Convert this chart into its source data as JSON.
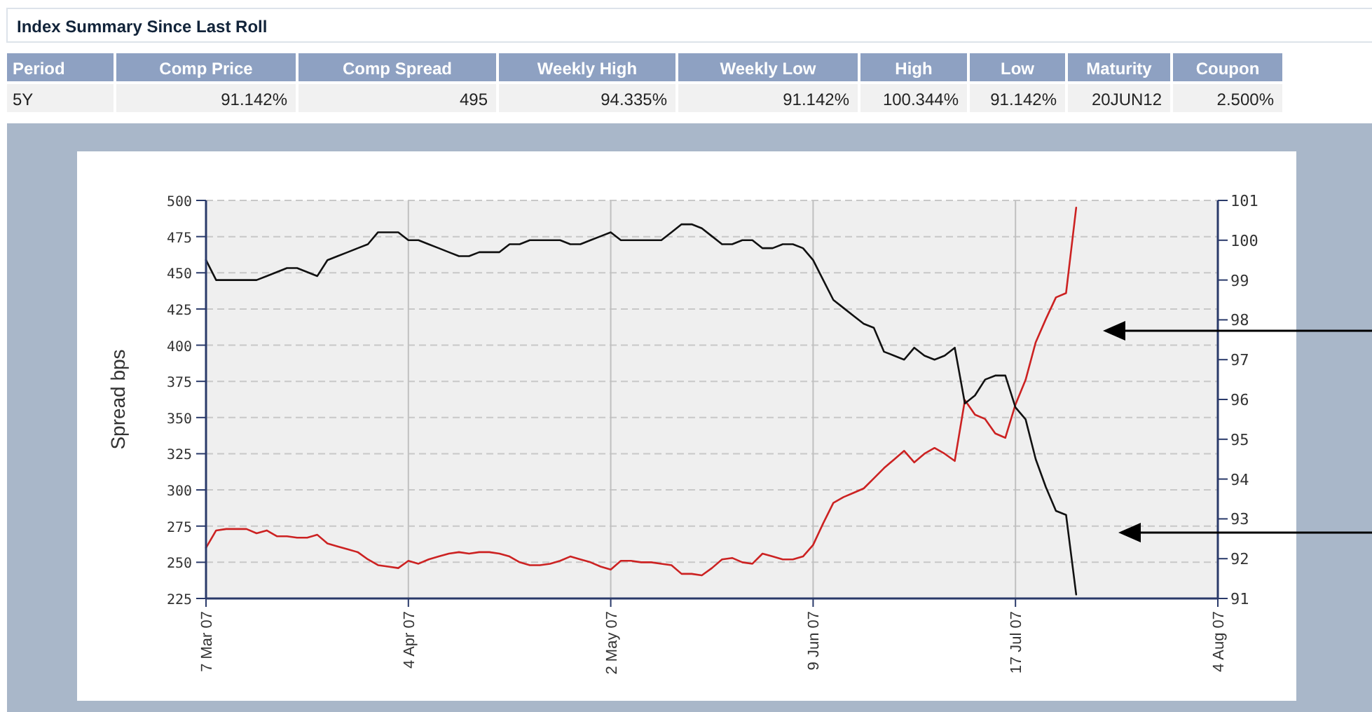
{
  "chart_data": [
    {
      "type": "other",
      "title": "Index Summary Since Last Roll",
      "categories": [
        "Period",
        "Comp Price",
        "Comp Spread",
        "Weekly High",
        "Weekly Low",
        "High",
        "Low",
        "Maturity",
        "Coupon"
      ],
      "annotations": [
        "5Y",
        "91.142%",
        "495",
        "94.335%",
        "91.142%",
        "100.344%",
        "91.142%",
        "20JUN12",
        "2.500%"
      ]
    },
    {
      "type": "line",
      "ylabel": "Spread bps",
      "categories": [
        "7 Mar 07",
        null,
        null,
        null,
        null,
        null,
        null,
        null,
        null,
        null,
        null,
        null,
        null,
        null,
        null,
        null,
        null,
        null,
        null,
        null,
        "4 Apr 07",
        null,
        null,
        null,
        null,
        null,
        null,
        null,
        null,
        null,
        null,
        null,
        null,
        null,
        null,
        null,
        null,
        null,
        null,
        null,
        "2 May 07",
        null,
        null,
        null,
        null,
        null,
        null,
        null,
        null,
        null,
        null,
        null,
        null,
        null,
        null,
        null,
        null,
        null,
        null,
        null,
        "9 Jun 07",
        null,
        null,
        null,
        null,
        null,
        null,
        null,
        null,
        null,
        null,
        null,
        null,
        null,
        null,
        null,
        null,
        null,
        null,
        null,
        "17 Jul 07",
        null,
        null,
        null,
        null,
        null,
        null,
        null,
        null,
        null,
        null,
        null,
        null,
        null,
        null,
        null,
        null,
        null,
        null,
        null,
        "4 Aug 07"
      ],
      "ylim": [
        225,
        500
      ],
      "yticks": [
        225,
        250,
        275,
        300,
        325,
        350,
        375,
        400,
        425,
        450,
        475,
        500
      ],
      "y2lim": [
        91,
        101
      ],
      "y2ticks": [
        91,
        92,
        93,
        94,
        95,
        96,
        97,
        98,
        99,
        100,
        101
      ],
      "grid": true,
      "series": [
        {
          "color": "#cc2222",
          "values": [
            260,
            272,
            273,
            273,
            273,
            270,
            272,
            268,
            268,
            267,
            267,
            269,
            263,
            261,
            259,
            257,
            252,
            248,
            247,
            246,
            251,
            249,
            252,
            254,
            256,
            257,
            256,
            257,
            257,
            256,
            254,
            250,
            248,
            248,
            249,
            251,
            254,
            252,
            250,
            247,
            245,
            251,
            251,
            250,
            250,
            249,
            248,
            242,
            242,
            241,
            246,
            252,
            253,
            250,
            249,
            256,
            254,
            252,
            252,
            254,
            262,
            277,
            291,
            295,
            298,
            301,
            308,
            315,
            321,
            327,
            319,
            325,
            329,
            325,
            320,
            362,
            352,
            349,
            339,
            336,
            359,
            376,
            402,
            418,
            433,
            436,
            495,
            null,
            null,
            null,
            null,
            null,
            null,
            null,
            null,
            null,
            null,
            null,
            null,
            null,
            null
          ]
        },
        {
          "color": "#111111",
          "axis": "y2",
          "values": [
            99.5,
            99.0,
            99.0,
            99.0,
            99.0,
            99.0,
            99.1,
            99.2,
            99.3,
            99.3,
            99.2,
            99.1,
            99.5,
            99.6,
            99.7,
            99.8,
            99.9,
            100.2,
            100.2,
            100.2,
            100.0,
            100.0,
            99.9,
            99.8,
            99.7,
            99.6,
            99.6,
            99.7,
            99.7,
            99.7,
            99.9,
            99.9,
            100.0,
            100.0,
            100.0,
            100.0,
            99.9,
            99.9,
            100.0,
            100.1,
            100.2,
            100.0,
            100.0,
            100.0,
            100.0,
            100.0,
            100.2,
            100.4,
            100.4,
            100.3,
            100.1,
            99.9,
            99.9,
            100.0,
            100.0,
            99.8,
            99.8,
            99.9,
            99.9,
            99.8,
            99.5,
            99.0,
            98.5,
            98.3,
            98.1,
            97.9,
            97.8,
            97.2,
            97.1,
            97.0,
            97.3,
            97.1,
            97.0,
            97.1,
            97.3,
            95.9,
            96.1,
            96.5,
            96.6,
            96.6,
            95.8,
            95.5,
            94.5,
            93.8,
            93.2,
            93.1,
            91.1,
            null,
            null,
            null,
            null,
            null,
            null,
            null,
            null,
            null,
            null,
            null,
            null,
            null,
            null
          ]
        }
      ]
    }
  ]
}
